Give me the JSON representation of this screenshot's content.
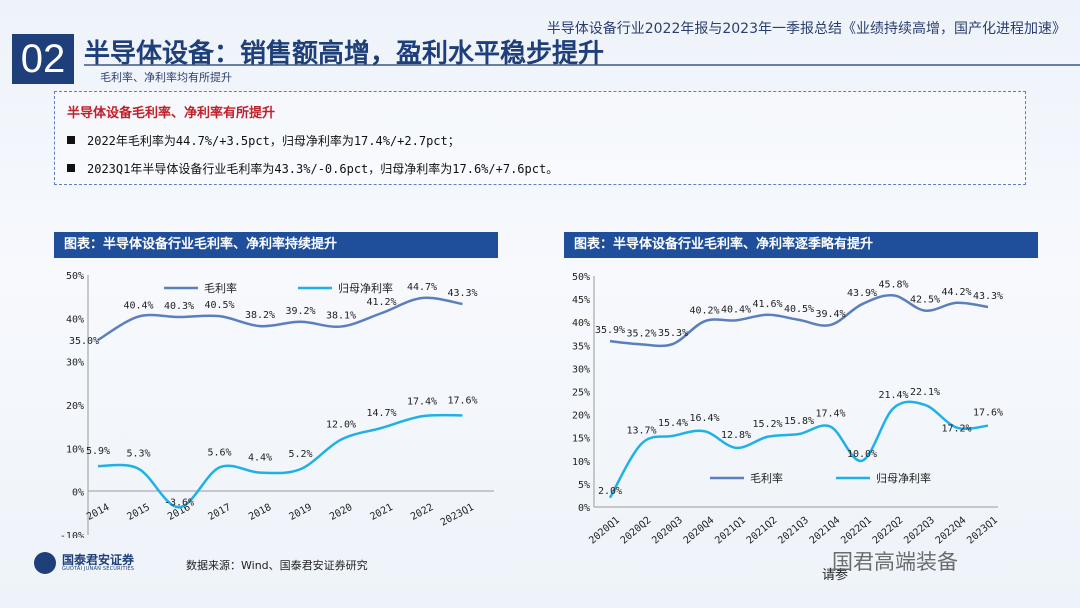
{
  "header": {
    "doc_title": "半导体设备行业2022年报与2023年一季报总结《业绩持续高增，国产化进程加速》",
    "section_number": "02",
    "headline": "半导体设备：销售额高增，盈利水平稳步提升",
    "subtitle": "毛利率、净利率均有所提升"
  },
  "summary": {
    "title": "半导体设备毛利率、净利率有所提升",
    "bullets": [
      "2022年毛利率为44.7%/+3.5pct，归母净利率为17.4%/+2.7pct；",
      "2023Q1年半导体设备行业毛利率为43.3%/-0.6pct，归母净利率为17.6%/+7.6pct。"
    ]
  },
  "colors": {
    "brand": "#1f3f7a",
    "gross": "#5b7fbc",
    "net": "#1fb1e6",
    "red": "#c0202a"
  },
  "chart_data": [
    {
      "type": "line",
      "title": "图表：半导体设备行业毛利率、净利率持续提升",
      "categories": [
        "2014",
        "2015",
        "2016",
        "2017",
        "2018",
        "2019",
        "2020",
        "2021",
        "2022",
        "2023Q1"
      ],
      "series": [
        {
          "name": "毛利率",
          "values": [
            35.0,
            40.4,
            40.3,
            40.5,
            38.2,
            39.2,
            38.1,
            41.2,
            44.7,
            43.3
          ],
          "labels": [
            "35.0%",
            "40.4%",
            "40.3%",
            "40.5%",
            "38.2%",
            "39.2%",
            "38.1%",
            "41.2%",
            "44.7%",
            "43.3%"
          ]
        },
        {
          "name": "归母净利率",
          "values": [
            5.9,
            5.3,
            -3.6,
            5.6,
            4.4,
            5.2,
            12.0,
            14.7,
            17.4,
            17.6
          ],
          "labels": [
            "5.9%",
            "5.3%",
            "-3.6%",
            "5.6%",
            "4.4%",
            "5.2%",
            "12.0%",
            "14.7%",
            "17.4%",
            "17.6%"
          ]
        }
      ],
      "yticks": [
        "-10%",
        "0%",
        "10%",
        "20%",
        "30%",
        "40%",
        "50%"
      ],
      "ylim": [
        -10,
        50
      ],
      "legend": "top"
    },
    {
      "type": "line",
      "title": "图表：半导体设备行业毛利率、净利率逐季略有提升",
      "categories": [
        "2020Q1",
        "2020Q2",
        "2020Q3",
        "2020Q4",
        "2021Q1",
        "2021Q2",
        "2021Q3",
        "2021Q4",
        "2022Q1",
        "2022Q2",
        "2022Q3",
        "2022Q4",
        "2023Q1"
      ],
      "series": [
        {
          "name": "毛利率",
          "values": [
            35.9,
            35.2,
            35.3,
            40.2,
            40.4,
            41.6,
            40.5,
            39.4,
            43.9,
            45.8,
            42.5,
            44.2,
            43.3
          ],
          "labels": [
            "35.9%",
            "35.2%",
            "35.3%",
            "40.2%",
            "40.4%",
            "41.6%",
            "40.5%",
            "39.4%",
            "43.9%",
            "45.8%",
            "42.5%",
            "44.2%",
            "43.3%"
          ]
        },
        {
          "name": "归母净利率",
          "values": [
            2.0,
            13.7,
            15.4,
            16.4,
            12.8,
            15.2,
            15.8,
            17.4,
            10.0,
            21.4,
            22.1,
            17.2,
            17.6
          ],
          "labels": [
            "2.0%",
            "13.7%",
            "15.4%",
            "16.4%",
            "12.8%",
            "15.2%",
            "15.8%",
            "17.4%",
            "10.0%",
            "21.4%",
            "22.1%",
            "17.2%",
            "17.6%"
          ]
        }
      ],
      "yticks": [
        "0%",
        "5%",
        "10%",
        "15%",
        "20%",
        "25%",
        "30%",
        "35%",
        "40%",
        "45%",
        "50%"
      ],
      "ylim": [
        0,
        50
      ],
      "legend": "bottom"
    }
  ],
  "footer": {
    "logo_cn": "国泰君安证券",
    "logo_en": "GUOTAI JUNAN SECURITIES",
    "source": "数据来源：Wind、国泰君安证券研究",
    "watermark": "国君高端装备",
    "disclaimer": "请参"
  }
}
